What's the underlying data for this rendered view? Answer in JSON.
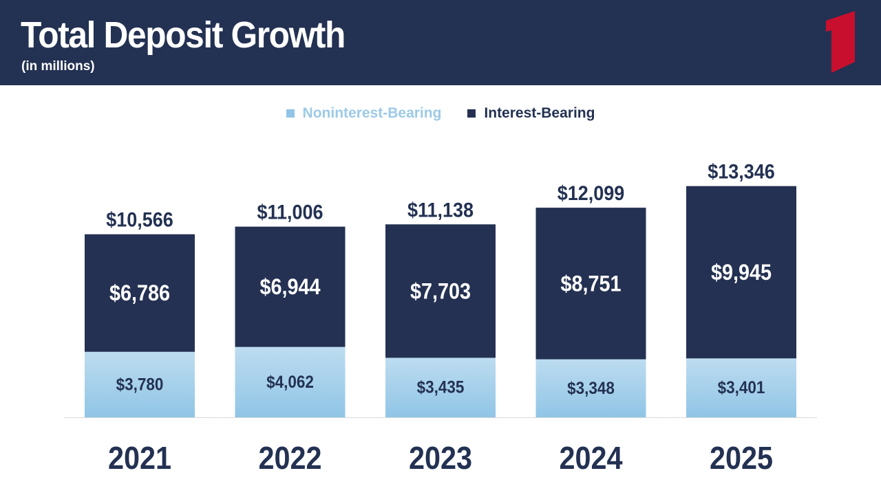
{
  "header": {
    "title": "Total Deposit Growth",
    "subtitle": "(in millions)",
    "logo_icon": "red-number-one-logo-icon"
  },
  "colors": {
    "header_bg": "#233152",
    "interest_bearing": "#243152",
    "noninterest_top": "#bddcf0",
    "noninterest_bottom": "#90c5e6",
    "noninterest_legend_text": "#9ccae7",
    "logo_red": "#c8102e",
    "axis": "#d9d9d9",
    "label_dark": "#233152",
    "label_light": "#ffffff"
  },
  "chart_data": {
    "type": "bar",
    "stacked": true,
    "categories": [
      "2021",
      "2022",
      "2023",
      "2024",
      "2025"
    ],
    "series": [
      {
        "name": "Noninterest-Bearing",
        "values": [
          3780,
          4062,
          3435,
          3348,
          3401
        ],
        "labels": [
          "$3,780",
          "$4,062",
          "$3,435",
          "$3,348",
          "$3,401"
        ]
      },
      {
        "name": "Interest-Bearing",
        "values": [
          6786,
          6944,
          7703,
          8751,
          9945
        ],
        "labels": [
          "$6,786",
          "$6,944",
          "$7,703",
          "$8,751",
          "$9,945"
        ]
      }
    ],
    "totals": [
      10566,
      11006,
      11138,
      12099,
      13346
    ],
    "total_labels": [
      "$10,566",
      "$11,006",
      "$11,138",
      "$12,099",
      "$13,346"
    ],
    "title": "Total Deposit Growth",
    "subtitle": "(in millions)",
    "xlabel": "",
    "ylabel": "",
    "ylim": [
      0,
      14000
    ],
    "grid": false,
    "legend": "top-center"
  }
}
